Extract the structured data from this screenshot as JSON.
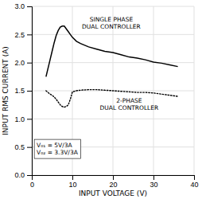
{
  "chart_data": {
    "type": "line",
    "title": "",
    "xlabel": "INPUT VOLTAGE (V)",
    "ylabel": "INPUT RMS CURRENT (A)",
    "xlim": [
      0,
      40
    ],
    "ylim": [
      0,
      3.0
    ],
    "xticks": [
      0,
      10,
      20,
      30,
      40
    ],
    "yticks": [
      {
        "value": 0,
        "label": "0.0"
      },
      0.5,
      {
        "value": 1.0,
        "label": "1.0"
      },
      1.5,
      {
        "value": 2.0,
        "label": "2.0"
      },
      2.5,
      {
        "value": 3.0,
        "label": "3.0"
      }
    ],
    "grid": true,
    "annotations": [
      "SINGLE PHASE\nDUAL CONTROLLER",
      "2-PHASE\nDUAL CONTROLLER",
      "V₀₁ = 5V/3A\nV₀₂ = 3.3V/3A"
    ],
    "series": [
      {
        "color": "#000000",
        "line_style": "solid",
        "x": [
          3.5,
          4.5,
          5.0,
          5.5,
          6.0,
          6.5,
          7.0,
          7.5,
          8.0,
          8.5,
          9.0,
          9.5,
          10.0,
          11.0,
          12.0,
          14.0,
          16.0,
          18.0,
          20.0,
          22.0,
          24.0,
          26.0,
          28.0,
          30.0,
          32.0,
          34.0,
          36.0
        ],
        "values": [
          1.75,
          2.05,
          2.2,
          2.35,
          2.48,
          2.57,
          2.63,
          2.65,
          2.65,
          2.6,
          2.55,
          2.5,
          2.45,
          2.38,
          2.34,
          2.28,
          2.24,
          2.2,
          2.18,
          2.14,
          2.1,
          2.08,
          2.05,
          2.01,
          1.99,
          1.96,
          1.93
        ]
      },
      {
        "color": "#000000",
        "line_style": "dotted",
        "x": [
          3.5,
          4.0,
          4.5,
          5.0,
          5.5,
          6.0,
          6.5,
          7.0,
          7.5,
          8.0,
          8.5,
          9.0,
          9.5,
          10.0,
          11.0,
          12.0,
          14.0,
          16.0,
          18.0,
          20.0,
          22.0,
          24.0,
          26.0,
          28.0,
          30.0,
          32.0,
          34.0,
          36.0
        ],
        "values": [
          1.5,
          1.47,
          1.44,
          1.42,
          1.39,
          1.35,
          1.3,
          1.25,
          1.22,
          1.21,
          1.22,
          1.25,
          1.35,
          1.48,
          1.5,
          1.51,
          1.52,
          1.52,
          1.51,
          1.5,
          1.49,
          1.48,
          1.47,
          1.47,
          1.46,
          1.44,
          1.42,
          1.4
        ]
      }
    ]
  }
}
